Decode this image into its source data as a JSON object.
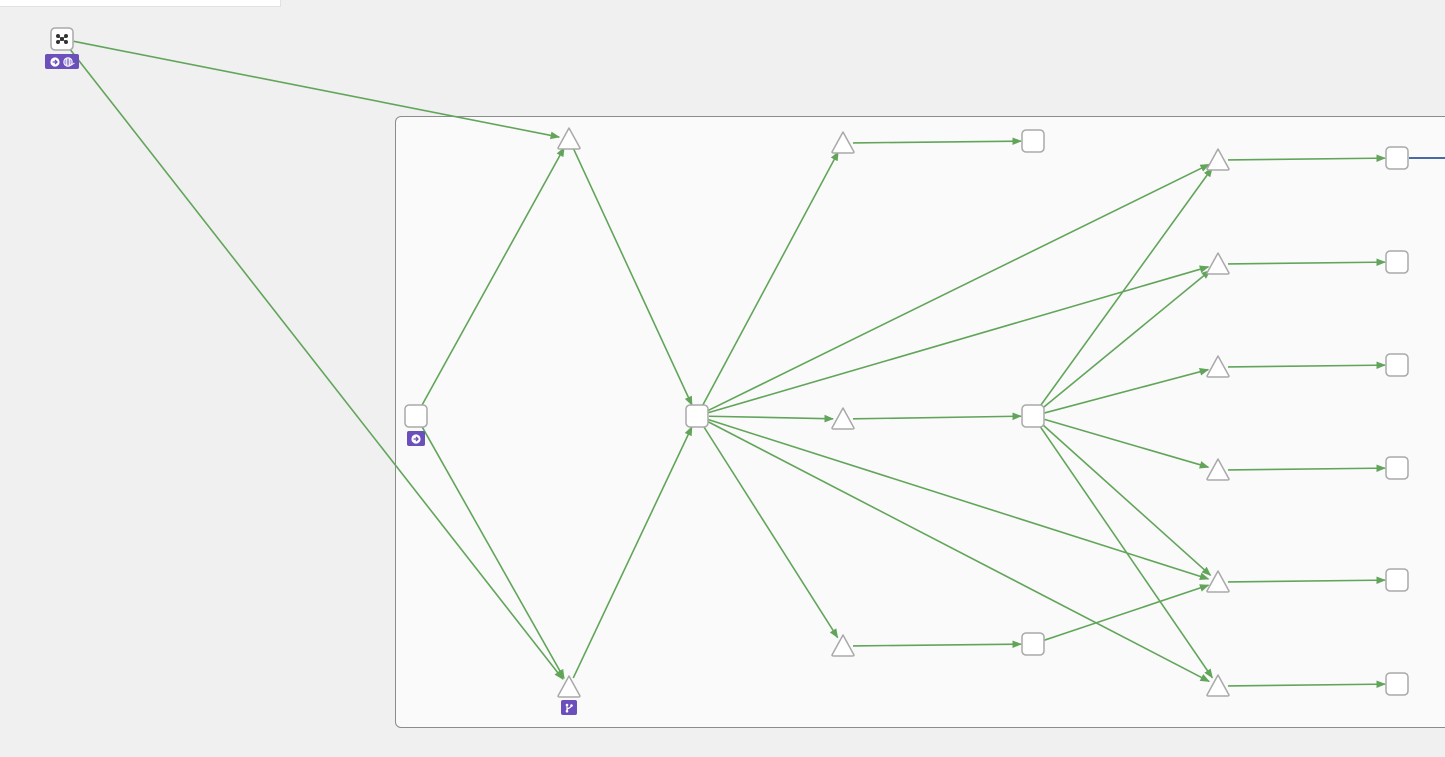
{
  "colors": {
    "canvas": "#f0f0f0",
    "group_fill": "#fafafa",
    "group_border": "#8c8c8c",
    "edge": "#62a55a",
    "outgoing_edge": "#4a6aa6",
    "node_fill": "#ffffff",
    "node_border": "#a9a9a9",
    "badge": "#6b4fbb"
  },
  "nodes": [
    {
      "id": "source",
      "kind": "box",
      "icon": "network-icon"
    },
    {
      "id": "entry",
      "kind": "box"
    },
    {
      "id": "split-top",
      "kind": "triangle"
    },
    {
      "id": "split-bottom",
      "kind": "triangle"
    },
    {
      "id": "hub",
      "kind": "box"
    },
    {
      "id": "mid-top",
      "kind": "triangle"
    },
    {
      "id": "mid-center",
      "kind": "triangle"
    },
    {
      "id": "mid-bottom",
      "kind": "triangle"
    },
    {
      "id": "mid-top-out",
      "kind": "box"
    },
    {
      "id": "fan-hub",
      "kind": "box"
    },
    {
      "id": "mid-bottom-out",
      "kind": "box"
    },
    {
      "id": "branch-1",
      "kind": "triangle"
    },
    {
      "id": "branch-2",
      "kind": "triangle"
    },
    {
      "id": "branch-3",
      "kind": "triangle"
    },
    {
      "id": "branch-4",
      "kind": "triangle"
    },
    {
      "id": "branch-5",
      "kind": "triangle"
    },
    {
      "id": "branch-6",
      "kind": "triangle"
    },
    {
      "id": "leaf-1",
      "kind": "box"
    },
    {
      "id": "leaf-2",
      "kind": "box"
    },
    {
      "id": "leaf-3",
      "kind": "box"
    },
    {
      "id": "leaf-4",
      "kind": "box"
    },
    {
      "id": "leaf-5",
      "kind": "box"
    },
    {
      "id": "leaf-6",
      "kind": "box"
    }
  ],
  "edges": [
    [
      "source",
      "split-top"
    ],
    [
      "source",
      "split-bottom"
    ],
    [
      "entry",
      "split-top"
    ],
    [
      "entry",
      "split-bottom"
    ],
    [
      "split-top",
      "hub"
    ],
    [
      "split-bottom",
      "hub"
    ],
    [
      "hub",
      "mid-top"
    ],
    [
      "hub",
      "mid-center"
    ],
    [
      "hub",
      "mid-bottom"
    ],
    [
      "hub",
      "branch-1"
    ],
    [
      "hub",
      "branch-2"
    ],
    [
      "hub",
      "branch-5"
    ],
    [
      "hub",
      "branch-6"
    ],
    [
      "mid-top",
      "mid-top-out"
    ],
    [
      "mid-center",
      "fan-hub"
    ],
    [
      "mid-bottom",
      "mid-bottom-out"
    ],
    [
      "mid-bottom-out",
      "branch-5"
    ],
    [
      "fan-hub",
      "branch-1"
    ],
    [
      "fan-hub",
      "branch-2"
    ],
    [
      "fan-hub",
      "branch-3"
    ],
    [
      "fan-hub",
      "branch-4"
    ],
    [
      "fan-hub",
      "branch-5"
    ],
    [
      "fan-hub",
      "branch-6"
    ],
    [
      "branch-1",
      "leaf-1"
    ],
    [
      "branch-2",
      "leaf-2"
    ],
    [
      "branch-3",
      "leaf-3"
    ],
    [
      "branch-4",
      "leaf-4"
    ],
    [
      "branch-5",
      "leaf-5"
    ],
    [
      "branch-6",
      "leaf-6"
    ]
  ],
  "outgoing_edges": [
    "leaf-1"
  ],
  "badges": [
    {
      "node": "source",
      "icons": [
        "arrow-right-circle-icon",
        "globe-icon"
      ]
    },
    {
      "node": "entry",
      "icons": [
        "arrow-right-circle-icon"
      ]
    },
    {
      "node": "split-bottom",
      "icons": [
        "branch-icon"
      ]
    }
  ]
}
